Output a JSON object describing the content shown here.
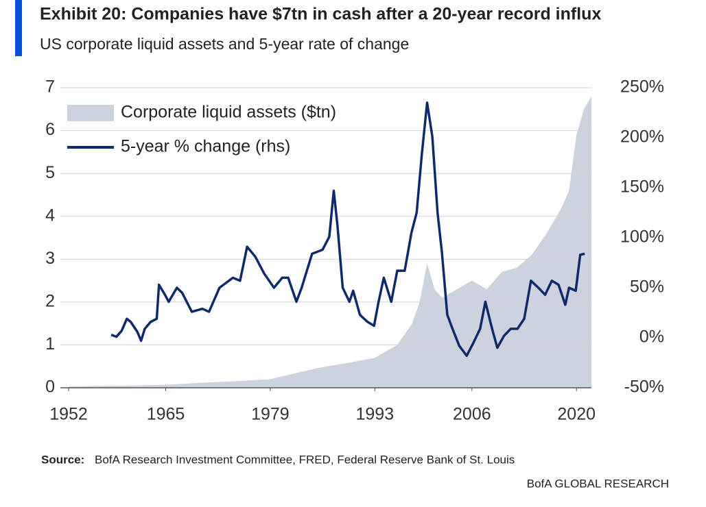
{
  "chart_data": {
    "type": "area-line",
    "title": "Exhibit 20: Companies have $7tn in cash after a 20-year record influx",
    "subtitle": "US corporate liquid assets and 5-year rate of change",
    "source_label": "Source:",
    "source": "BofA Research Investment Committee, FRED, Federal Reserve Bank of St. Louis",
    "footer": "BofA GLOBAL RESEARCH",
    "xlim": [
      1952,
      2022
    ],
    "xticks": [
      1952,
      1965,
      1979,
      1993,
      2006,
      2020
    ],
    "ylim": [
      0,
      7
    ],
    "yticks": [
      0,
      1,
      2,
      3,
      4,
      5,
      6,
      7
    ],
    "y2lim": [
      -50,
      250
    ],
    "y2ticks": [
      {
        "value": -50,
        "label": "-50%"
      },
      {
        "value": 0,
        "label": "0%"
      },
      {
        "value": 50,
        "label": "50%"
      },
      {
        "value": 100,
        "label": "100%"
      },
      {
        "value": 150,
        "label": "150%"
      },
      {
        "value": 200,
        "label": "200%"
      },
      {
        "value": 250,
        "label": "250%"
      }
    ],
    "grid": true,
    "legend": "upper left",
    "series": [
      {
        "name": "Corporate liquid assets ($tn)",
        "type": "area",
        "color": "#cdd2df",
        "x": [
          1952,
          1955,
          1960,
          1965,
          1970,
          1975,
          1979,
          1985,
          1990,
          1993,
          1996,
          1998,
          1999,
          2000,
          2001,
          2002,
          2004,
          2006,
          2008,
          2010,
          2012,
          2014,
          2016,
          2018,
          2019,
          2020,
          2021,
          2022
        ],
        "values": [
          0.03,
          0.04,
          0.05,
          0.07,
          0.12,
          0.16,
          0.2,
          0.45,
          0.6,
          0.7,
          1.0,
          1.5,
          2.0,
          2.9,
          2.3,
          2.1,
          2.3,
          2.5,
          2.3,
          2.7,
          2.8,
          3.1,
          3.6,
          4.2,
          4.6,
          5.9,
          6.5,
          6.8
        ]
      },
      {
        "name": "5-year % change (rhs)",
        "type": "line",
        "axis": "y2",
        "color": "#0f2a6b",
        "x": [
          1957.7,
          1958.4,
          1959.1,
          1959.8,
          1960.3,
          1961.2,
          1961.7,
          1962.2,
          1963,
          1963.8,
          1964.1,
          1964.9,
          1965.4,
          1966.5,
          1967.2,
          1968.5,
          1969.9,
          1970.8,
          1972.2,
          1974,
          1974.96,
          1975.9,
          1977,
          1978.2,
          1979.5,
          1980.6,
          1981.4,
          1982.5,
          1983.2,
          1984.6,
          1986,
          1986.9,
          1987.5,
          1988,
          1988.7,
          1989.6,
          1990.1,
          1991,
          1992,
          1992.9,
          1993.5,
          1994.2,
          1995.2,
          1996,
          1997,
          1997.9,
          1998.6,
          1999.3,
          2000,
          2000.7,
          2001.4,
          2002,
          2002.7,
          2003.4,
          2004.3,
          2005.3,
          2006.2,
          2007.1,
          2007.8,
          2008.7,
          2009.4,
          2010.3,
          2011.2,
          2012.1,
          2013,
          2013.9,
          2014.9,
          2015.8,
          2016.7,
          2017.6,
          2018.5,
          2019,
          2019.9,
          2020.5,
          2021.1
        ],
        "values": [
          3,
          1,
          7,
          19,
          16,
          6,
          -3,
          9,
          16,
          19,
          53,
          43,
          36,
          50,
          45,
          26,
          29,
          26,
          50,
          60,
          57,
          91,
          81,
          64,
          50,
          60,
          60,
          36,
          50,
          84,
          88,
          101,
          147,
          112,
          50,
          36,
          47,
          23,
          16,
          12,
          36,
          60,
          36,
          67,
          67,
          105,
          125,
          184,
          235,
          201,
          125,
          84,
          23,
          9,
          -8,
          -18,
          -5,
          9,
          36,
          9,
          -10,
          2,
          9,
          9,
          19,
          57,
          50,
          43,
          57,
          53,
          33,
          50,
          47,
          83,
          84
        ]
      }
    ]
  }
}
